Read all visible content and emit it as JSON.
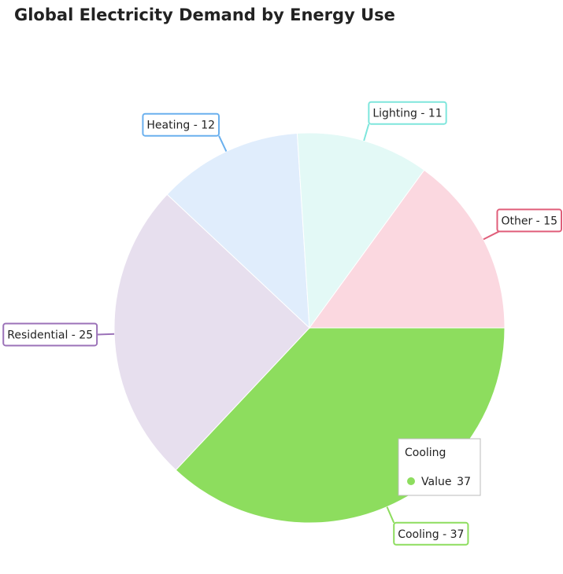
{
  "chart_data": {
    "type": "pie",
    "title": "Global Electricity Demand by Energy Use",
    "categories": [
      "Cooling",
      "Residential",
      "Heating",
      "Lighting",
      "Other"
    ],
    "values": [
      37,
      25,
      12,
      11,
      15
    ],
    "value_labels": [
      "Cooling - 37",
      "Residential - 25",
      "Heating - 12",
      "Lighting - 11",
      "Other - 15"
    ],
    "colors": [
      "#8ddd5e",
      "#e7dfee",
      "#e0edfc",
      "#e3f9f6",
      "#fbd8e0"
    ],
    "border_colors": [
      "#8ddd5e",
      "#9b72b8",
      "#6ab0ee",
      "#7ee6dc",
      "#e05e7a"
    ],
    "tooltip": {
      "title": "Cooling",
      "label": "Value",
      "value": 37
    }
  }
}
